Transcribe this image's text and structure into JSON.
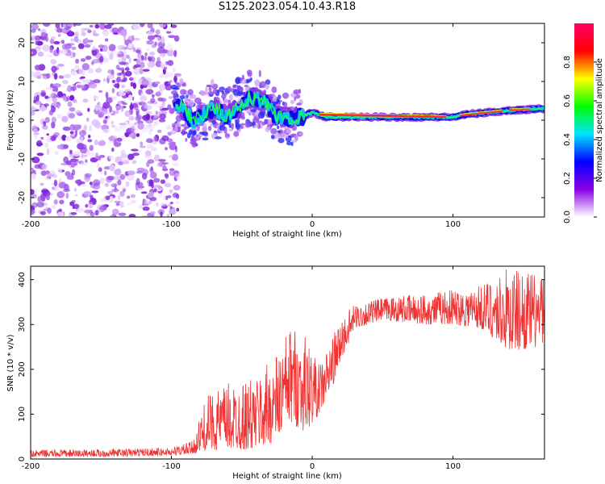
{
  "title": "S125.2023.054.10.43.R18",
  "chart_data": [
    {
      "type": "heatmap",
      "title": "",
      "xlabel": "Height of straight line (km)",
      "ylabel": "Frequency (Hz)",
      "xlim": [
        -200,
        165
      ],
      "ylim": [
        -25,
        25
      ],
      "x_ticks": [
        -200,
        -100,
        0,
        100
      ],
      "y_ticks": [
        -20,
        -10,
        0,
        10,
        20
      ],
      "colorbar": {
        "label": "Normalized spectral amplitude",
        "range": [
          0,
          1
        ],
        "ticks": [
          0.0,
          0.2,
          0.4,
          0.6,
          0.8
        ],
        "colormap": [
          "#ffffff",
          "#8a00e6",
          "#0000ff",
          "#00e5ff",
          "#00ff00",
          "#ffff00",
          "#ff0000",
          "#ff0066"
        ]
      },
      "features": {
        "noise_region_x": [
          -200,
          -95
        ],
        "ridge_center_hz": [
          {
            "x": -95,
            "y": 4
          },
          {
            "x": -85,
            "y": 0
          },
          {
            "x": -70,
            "y": 3
          },
          {
            "x": -60,
            "y": 1
          },
          {
            "x": -45,
            "y": 6
          },
          {
            "x": -35,
            "y": 5
          },
          {
            "x": -25,
            "y": 1
          },
          {
            "x": -10,
            "y": 0.5
          },
          {
            "x": 0,
            "y": 2
          },
          {
            "x": 10,
            "y": 0.8
          },
          {
            "x": 100,
            "y": 0.8
          },
          {
            "x": 110,
            "y": 1.5
          },
          {
            "x": 140,
            "y": 2.5
          },
          {
            "x": 165,
            "y": 3
          }
        ]
      }
    },
    {
      "type": "line",
      "title": "",
      "xlabel": "Height of straight line (km)",
      "ylabel": "SNR (10 * v/v)",
      "xlim": [
        -200,
        165
      ],
      "ylim": [
        0,
        430
      ],
      "x_ticks": [
        -200,
        -100,
        0,
        100
      ],
      "y_ticks": [
        0,
        100,
        200,
        300,
        400
      ],
      "series": [
        {
          "color": "#ee3333",
          "envelope": [
            {
              "x": -200,
              "lo": 5,
              "hi": 20
            },
            {
              "x": -150,
              "lo": 5,
              "hi": 22
            },
            {
              "x": -100,
              "lo": 8,
              "hi": 25
            },
            {
              "x": -85,
              "lo": 10,
              "hi": 40
            },
            {
              "x": -75,
              "lo": 20,
              "hi": 140
            },
            {
              "x": -60,
              "lo": 20,
              "hi": 170
            },
            {
              "x": -40,
              "lo": 20,
              "hi": 180
            },
            {
              "x": -25,
              "lo": 40,
              "hi": 240
            },
            {
              "x": -15,
              "lo": 80,
              "hi": 300
            },
            {
              "x": -5,
              "lo": 60,
              "hi": 280
            },
            {
              "x": 5,
              "lo": 100,
              "hi": 210
            },
            {
              "x": 12,
              "lo": 140,
              "hi": 260
            },
            {
              "x": 22,
              "lo": 230,
              "hi": 320
            },
            {
              "x": 30,
              "lo": 290,
              "hi": 345
            },
            {
              "x": 50,
              "lo": 310,
              "hi": 360
            },
            {
              "x": 80,
              "lo": 300,
              "hi": 370
            },
            {
              "x": 100,
              "lo": 300,
              "hi": 380
            },
            {
              "x": 120,
              "lo": 290,
              "hi": 390
            },
            {
              "x": 140,
              "lo": 240,
              "hi": 430
            },
            {
              "x": 165,
              "lo": 250,
              "hi": 410
            }
          ]
        }
      ]
    }
  ]
}
